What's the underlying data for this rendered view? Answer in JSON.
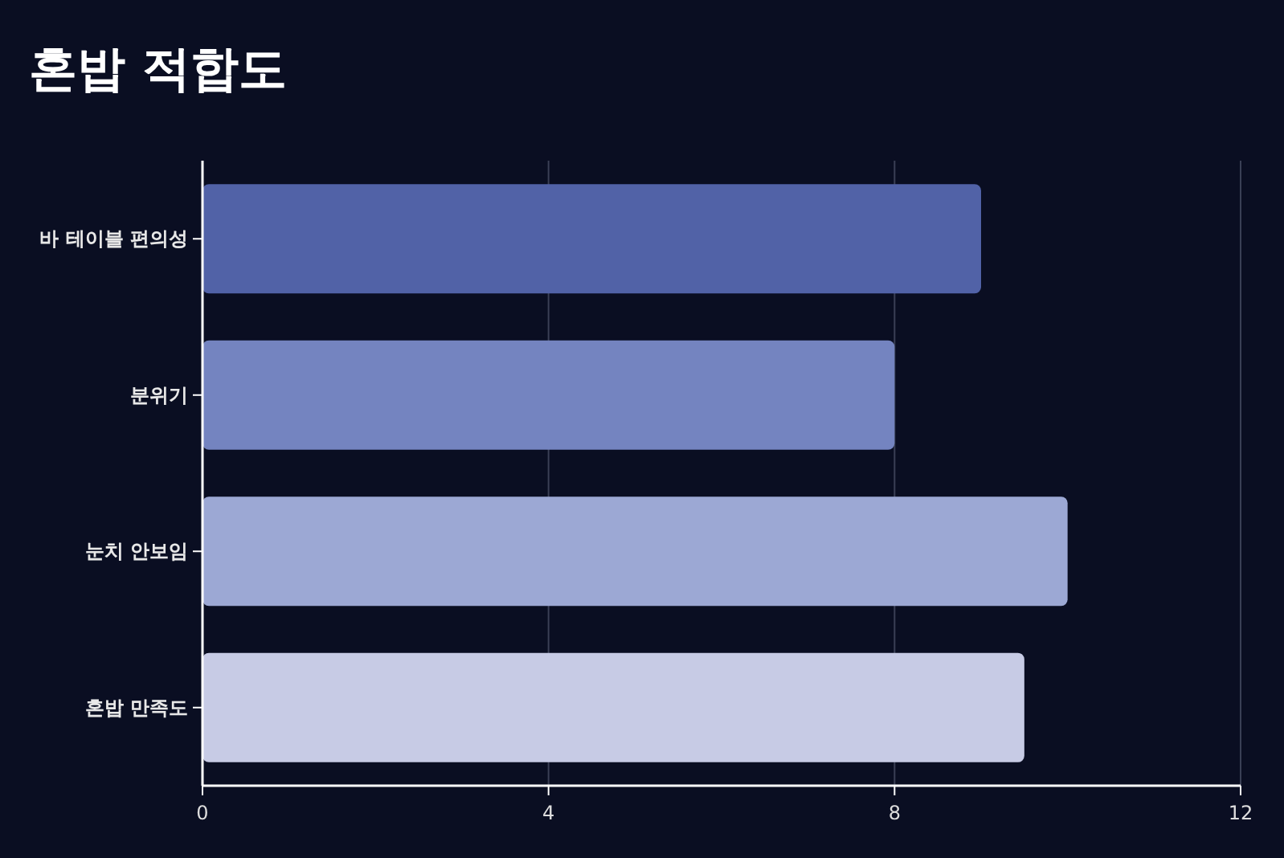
{
  "chart_data": {
    "type": "bar",
    "orientation": "horizontal",
    "title": "혼밥 적합도",
    "categories": [
      "바 테이블 편의성",
      "분위기",
      "눈치 안보임",
      "혼밥 만족도"
    ],
    "values": [
      9,
      8,
      10,
      9.5
    ],
    "colors": [
      "#5162a7",
      "#7484c0",
      "#9ca8d4",
      "#c7cbe5"
    ],
    "xlim": [
      0,
      12
    ],
    "xticks": [
      0,
      4,
      8,
      12
    ],
    "grid": "x"
  }
}
